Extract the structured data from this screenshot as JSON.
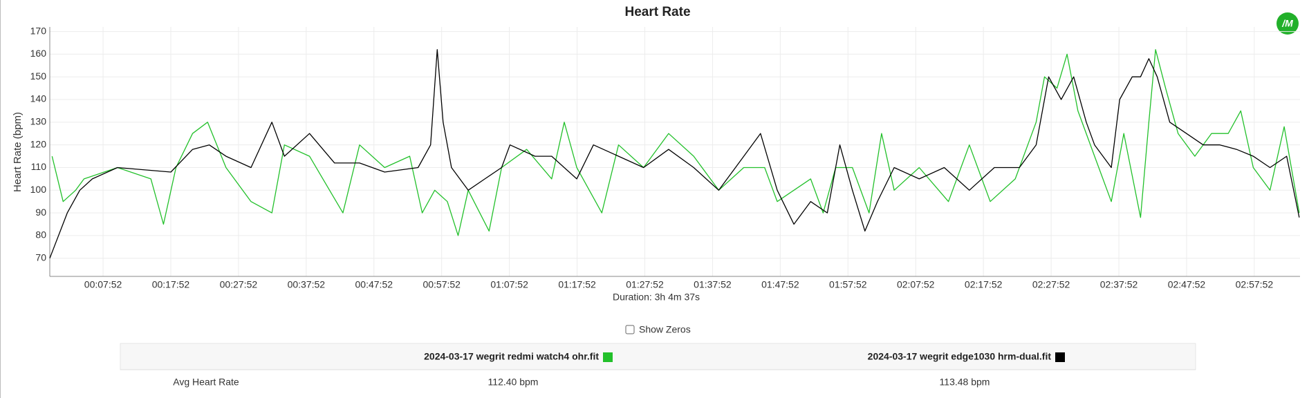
{
  "chart_data": {
    "type": "line",
    "title": "Heart Rate",
    "ylabel": "Heart Rate (bpm)",
    "xlabel": "Duration: 3h 4m 37s",
    "xlim": [
      0,
      11077
    ],
    "ylim": [
      62,
      172
    ],
    "grid": true,
    "xticks": [
      {
        "value": 472,
        "label": "00:07:52"
      },
      {
        "value": 1072,
        "label": "00:17:52"
      },
      {
        "value": 1672,
        "label": "00:27:52"
      },
      {
        "value": 2272,
        "label": "00:37:52"
      },
      {
        "value": 2872,
        "label": "00:47:52"
      },
      {
        "value": 3472,
        "label": "00:57:52"
      },
      {
        "value": 4072,
        "label": "01:07:52"
      },
      {
        "value": 4672,
        "label": "01:17:52"
      },
      {
        "value": 5272,
        "label": "01:27:52"
      },
      {
        "value": 5872,
        "label": "01:37:52"
      },
      {
        "value": 6472,
        "label": "01:47:52"
      },
      {
        "value": 7072,
        "label": "01:57:52"
      },
      {
        "value": 7672,
        "label": "02:07:52"
      },
      {
        "value": 8272,
        "label": "02:17:52"
      },
      {
        "value": 8872,
        "label": "02:27:52"
      },
      {
        "value": 9472,
        "label": "02:37:52"
      },
      {
        "value": 10072,
        "label": "02:47:52"
      },
      {
        "value": 10672,
        "label": "02:57:52"
      }
    ],
    "yticks": [
      70,
      80,
      90,
      100,
      110,
      120,
      130,
      140,
      150,
      160,
      170
    ],
    "series": [
      {
        "name": "2024-03-17 wegrit redmi watch4 ohr.fit",
        "color": "#22c02a",
        "x": [
          20,
          118,
          229,
          303,
          600,
          896,
          1007,
          1118,
          1265,
          1398,
          1561,
          1783,
          1968,
          2079,
          2301,
          2597,
          2745,
          2967,
          3189,
          3300,
          3411,
          3522,
          3618,
          3707,
          3892,
          4003,
          4225,
          4447,
          4558,
          4669,
          4891,
          5039,
          5261,
          5483,
          5705,
          5927,
          6149,
          6334,
          6445,
          6593,
          6741,
          6852,
          6963,
          7111,
          7259,
          7370,
          7481,
          7703,
          7962,
          8147,
          8332,
          8554,
          8739,
          8813,
          8924,
          9013,
          9109,
          9257,
          9405,
          9516,
          9664,
          9738,
          9797,
          9886,
          9997,
          10145,
          10293,
          10441,
          10552,
          10663,
          10811,
          10937,
          11070
        ],
        "values": [
          115,
          95,
          100,
          105,
          110,
          105,
          85,
          110,
          125,
          130,
          110,
          95,
          90,
          120,
          115,
          90,
          120,
          110,
          115,
          90,
          100,
          95,
          80,
          100,
          82,
          110,
          118,
          105,
          130,
          110,
          90,
          120,
          110,
          125,
          115,
          100,
          110,
          110,
          95,
          100,
          105,
          90,
          110,
          110,
          90,
          125,
          100,
          110,
          95,
          120,
          95,
          105,
          130,
          150,
          145,
          160,
          135,
          115,
          95,
          125,
          88,
          130,
          162,
          145,
          125,
          115,
          125,
          125,
          135,
          110,
          100,
          128,
          90
        ]
      },
      {
        "name": "2024-03-17 wegrit edge1030 hrm-dual.fit",
        "color": "#000000",
        "x": [
          0,
          155,
          266,
          377,
          600,
          1073,
          1265,
          1413,
          1561,
          1783,
          1968,
          2079,
          2301,
          2523,
          2745,
          2967,
          3263,
          3374,
          3433,
          3485,
          3559,
          3707,
          3855,
          4003,
          4077,
          4299,
          4447,
          4669,
          4817,
          5039,
          5261,
          5483,
          5705,
          5927,
          6075,
          6297,
          6445,
          6593,
          6741,
          6889,
          7000,
          7111,
          7222,
          7333,
          7481,
          7703,
          7925,
          8147,
          8369,
          8591,
          8739,
          8850,
          8961,
          9072,
          9183,
          9257,
          9405,
          9479,
          9590,
          9664,
          9738,
          9812,
          9923,
          10071,
          10219,
          10367,
          10515,
          10663,
          10811,
          10959,
          11070
        ],
        "values": [
          70,
          90,
          100,
          105,
          110,
          108,
          118,
          120,
          115,
          110,
          130,
          115,
          125,
          112,
          112,
          108,
          110,
          120,
          162,
          130,
          110,
          100,
          105,
          110,
          120,
          115,
          115,
          105,
          120,
          115,
          110,
          118,
          110,
          100,
          110,
          125,
          100,
          85,
          95,
          90,
          120,
          100,
          82,
          95,
          110,
          105,
          110,
          100,
          110,
          110,
          120,
          150,
          140,
          150,
          130,
          120,
          110,
          140,
          150,
          150,
          158,
          150,
          130,
          125,
          120,
          120,
          118,
          115,
          110,
          115,
          88
        ]
      }
    ]
  },
  "controls": {
    "show_zeros": "Show Zeros"
  },
  "logo": "/M",
  "table": {
    "columns": [
      "2024-03-17 wegrit redmi watch4 ohr.fit",
      "2024-03-17 wegrit edge1030 hrm-dual.fit"
    ],
    "rows": [
      [
        "Avg Heart Rate",
        "112.40 bpm",
        "113.48 bpm"
      ]
    ]
  }
}
